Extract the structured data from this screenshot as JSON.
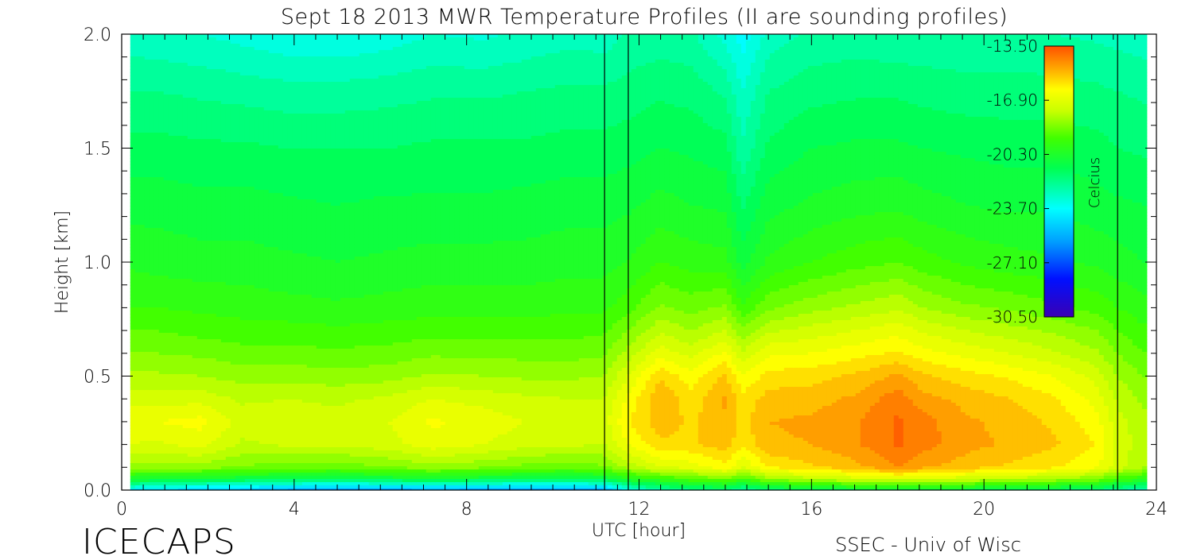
{
  "chart_data": {
    "type": "heatmap",
    "title": "Sept 18 2013 MWR Temperature Profiles (II are sounding profiles)",
    "xlabel": "UTC [hour]",
    "ylabel": "Height [km]",
    "xlim": [
      0,
      24
    ],
    "ylim": [
      0,
      2
    ],
    "x_ticks": [
      0,
      4,
      8,
      12,
      16,
      20,
      24
    ],
    "x_tick_labels": [
      "0",
      "4",
      "8",
      "12",
      "16",
      "20",
      "24"
    ],
    "y_ticks": [
      0,
      0.5,
      1.0,
      1.5,
      2.0
    ],
    "y_tick_labels": [
      "0.0",
      "0.5",
      "1.0",
      "1.5",
      "2.0"
    ],
    "colorbar": {
      "label": "Celcius",
      "range": [
        -30.5,
        -13.5
      ],
      "tick_labels": [
        "-13.50",
        "-16.90",
        "-20.30",
        "-23.70",
        "-27.10",
        "-30.50"
      ],
      "tick_values": [
        -13.5,
        -16.9,
        -20.3,
        -23.7,
        -27.1,
        -30.5
      ]
    },
    "sounding_times_hour": [
      11.2,
      11.75,
      23.1
    ],
    "data_gap": {
      "start_hour": 11.2,
      "end_hour": 11.75
    },
    "data_extent_hour": [
      0.2,
      23.7
    ],
    "height_levels_km": [
      0.0,
      0.05,
      0.1,
      0.2,
      0.3,
      0.4,
      0.5,
      0.6,
      0.7,
      0.8,
      1.0,
      1.25,
      1.5,
      1.75,
      2.0
    ],
    "columns": [
      {
        "hour": 0.2,
        "temps": [
          -24.0,
          -20.3,
          -18.2,
          -17.0,
          -16.6,
          -17.2,
          -17.9,
          -18.5,
          -19.0,
          -19.5,
          -20.1,
          -20.7,
          -21.3,
          -22.0,
          -22.8
        ]
      },
      {
        "hour": 0.8,
        "temps": [
          -24.2,
          -20.4,
          -18.3,
          -17.1,
          -16.5,
          -17.2,
          -17.9,
          -18.5,
          -19.0,
          -19.5,
          -20.2,
          -20.7,
          -21.3,
          -22.0,
          -22.9
        ]
      },
      {
        "hour": 1.8,
        "temps": [
          -24.8,
          -20.6,
          -18.2,
          -16.8,
          -16.3,
          -17.2,
          -18.0,
          -18.6,
          -19.2,
          -19.6,
          -20.3,
          -20.8,
          -21.4,
          -22.1,
          -23.0
        ]
      },
      {
        "hour": 2.8,
        "temps": [
          -25.0,
          -20.8,
          -18.6,
          -17.6,
          -17.2,
          -17.6,
          -18.2,
          -18.8,
          -19.3,
          -19.7,
          -20.3,
          -20.8,
          -21.4,
          -22.2,
          -23.2
        ]
      },
      {
        "hour": 3.8,
        "temps": [
          -25.5,
          -20.9,
          -18.7,
          -17.4,
          -17.2,
          -17.5,
          -18.2,
          -18.8,
          -19.3,
          -19.8,
          -20.4,
          -20.9,
          -21.5,
          -22.3,
          -23.4
        ]
      },
      {
        "hour": 5.0,
        "temps": [
          -25.8,
          -21.0,
          -18.8,
          -17.4,
          -17.3,
          -17.6,
          -18.3,
          -18.9,
          -19.4,
          -19.9,
          -20.5,
          -21.0,
          -21.5,
          -22.3,
          -23.5
        ]
      },
      {
        "hour": 6.2,
        "temps": [
          -25.6,
          -20.8,
          -18.5,
          -17.2,
          -17.0,
          -17.4,
          -18.2,
          -18.8,
          -19.3,
          -19.8,
          -20.4,
          -20.9,
          -21.5,
          -22.2,
          -23.3
        ]
      },
      {
        "hour": 7.2,
        "temps": [
          -25.4,
          -20.5,
          -18.2,
          -16.7,
          -16.4,
          -17.0,
          -17.9,
          -18.6,
          -19.2,
          -19.7,
          -20.3,
          -20.9,
          -21.4,
          -22.1,
          -23.0
        ]
      },
      {
        "hour": 8.4,
        "temps": [
          -25.6,
          -20.8,
          -18.4,
          -17.0,
          -16.7,
          -17.2,
          -18.0,
          -18.6,
          -19.2,
          -19.7,
          -20.3,
          -20.9,
          -21.4,
          -22.1,
          -23.1
        ]
      },
      {
        "hour": 9.4,
        "temps": [
          -25.8,
          -21.0,
          -18.7,
          -17.3,
          -17.0,
          -17.4,
          -18.1,
          -18.7,
          -19.2,
          -19.7,
          -20.3,
          -20.8,
          -21.4,
          -22.0,
          -22.9
        ]
      },
      {
        "hour": 10.4,
        "temps": [
          -25.8,
          -21.0,
          -18.8,
          -17.4,
          -17.1,
          -17.5,
          -18.1,
          -18.7,
          -19.2,
          -19.6,
          -20.2,
          -20.7,
          -21.3,
          -21.9,
          -22.7
        ]
      },
      {
        "hour": 11.2,
        "temps": [
          -25.5,
          -20.8,
          -18.6,
          -17.5,
          -17.2,
          -17.5,
          -18.0,
          -18.6,
          -19.1,
          -19.6,
          -20.2,
          -20.7,
          -21.3,
          -21.9,
          -22.8
        ]
      },
      {
        "hour": 11.75,
        "temps": [
          -23.5,
          -20.0,
          -17.8,
          -16.5,
          -16.0,
          -16.4,
          -17.0,
          -17.8,
          -18.5,
          -19.2,
          -20.0,
          -20.6,
          -21.2,
          -21.8,
          -22.4
        ]
      },
      {
        "hour": 12.5,
        "temps": [
          -22.5,
          -19.5,
          -17.0,
          -15.6,
          -15.2,
          -15.0,
          -15.6,
          -16.7,
          -17.6,
          -18.4,
          -19.5,
          -20.3,
          -21.0,
          -21.6,
          -22.3
        ]
      },
      {
        "hour": 13.2,
        "temps": [
          -22.0,
          -19.0,
          -16.8,
          -15.6,
          -15.6,
          -15.8,
          -16.3,
          -17.2,
          -18.0,
          -18.7,
          -19.7,
          -20.5,
          -21.1,
          -21.7,
          -22.4
        ]
      },
      {
        "hour": 14.0,
        "temps": [
          -21.8,
          -18.5,
          -16.2,
          -15.2,
          -15.1,
          -14.9,
          -15.4,
          -16.4,
          -17.5,
          -18.4,
          -19.8,
          -20.6,
          -21.3,
          -22.1,
          -23.2
        ]
      },
      {
        "hour": 14.4,
        "temps": [
          -22.5,
          -19.3,
          -17.0,
          -15.9,
          -15.7,
          -15.8,
          -16.5,
          -17.4,
          -18.4,
          -19.4,
          -20.7,
          -21.6,
          -22.4,
          -23.0,
          -23.8
        ]
      },
      {
        "hour": 15.0,
        "temps": [
          -21.6,
          -18.2,
          -16.0,
          -15.1,
          -15.0,
          -15.3,
          -15.8,
          -16.6,
          -17.6,
          -18.6,
          -19.9,
          -20.7,
          -21.4,
          -22.0,
          -22.8
        ]
      },
      {
        "hour": 16.0,
        "temps": [
          -21.3,
          -17.6,
          -15.6,
          -15.0,
          -14.9,
          -15.2,
          -15.7,
          -16.5,
          -17.3,
          -18.2,
          -19.5,
          -20.4,
          -21.0,
          -21.7,
          -22.4
        ]
      },
      {
        "hour": 17.0,
        "temps": [
          -21.0,
          -17.2,
          -15.2,
          -14.6,
          -14.6,
          -14.9,
          -15.4,
          -16.2,
          -17.0,
          -17.9,
          -19.2,
          -20.2,
          -20.9,
          -21.6,
          -22.3
        ]
      },
      {
        "hour": 18.0,
        "temps": [
          -20.8,
          -16.9,
          -14.5,
          -13.9,
          -13.9,
          -14.2,
          -14.9,
          -15.9,
          -16.7,
          -17.6,
          -19.0,
          -20.1,
          -20.9,
          -21.6,
          -22.4
        ]
      },
      {
        "hour": 18.6,
        "temps": [
          -20.9,
          -17.0,
          -14.9,
          -14.3,
          -14.3,
          -14.8,
          -15.4,
          -16.3,
          -17.1,
          -18.0,
          -19.3,
          -20.3,
          -21.0,
          -21.7,
          -22.4
        ]
      },
      {
        "hour": 19.6,
        "temps": [
          -21.0,
          -17.3,
          -15.3,
          -14.8,
          -14.9,
          -15.2,
          -15.8,
          -16.7,
          -17.5,
          -18.4,
          -19.6,
          -20.5,
          -21.1,
          -21.8,
          -22.4
        ]
      },
      {
        "hour": 20.6,
        "temps": [
          -21.2,
          -17.6,
          -15.6,
          -15.1,
          -15.2,
          -15.5,
          -16.1,
          -17.0,
          -17.8,
          -18.6,
          -19.8,
          -20.6,
          -21.2,
          -21.8,
          -22.4
        ]
      },
      {
        "hour": 21.6,
        "temps": [
          -21.4,
          -17.9,
          -15.9,
          -15.4,
          -15.6,
          -15.9,
          -16.5,
          -17.4,
          -18.1,
          -18.9,
          -19.9,
          -20.6,
          -21.2,
          -21.8,
          -22.5
        ]
      },
      {
        "hour": 22.6,
        "temps": [
          -21.8,
          -18.4,
          -16.4,
          -16.0,
          -16.3,
          -16.7,
          -17.2,
          -17.9,
          -18.5,
          -19.2,
          -20.1,
          -20.8,
          -21.3,
          -21.9,
          -22.6
        ]
      },
      {
        "hour": 23.1,
        "temps": [
          -22.3,
          -19.2,
          -17.3,
          -17.1,
          -17.3,
          -17.6,
          -18.0,
          -18.5,
          -19.0,
          -19.5,
          -20.3,
          -20.9,
          -21.5,
          -22.0,
          -22.7
        ]
      },
      {
        "hour": 23.7,
        "temps": [
          -22.8,
          -19.8,
          -18.0,
          -17.8,
          -17.9,
          -18.1,
          -18.5,
          -19.0,
          -19.4,
          -19.8,
          -20.5,
          -21.0,
          -21.6,
          -22.1,
          -22.8
        ]
      }
    ]
  },
  "footer": {
    "left": "ICECAPS",
    "right": "SSEC - Univ of Wisc"
  }
}
